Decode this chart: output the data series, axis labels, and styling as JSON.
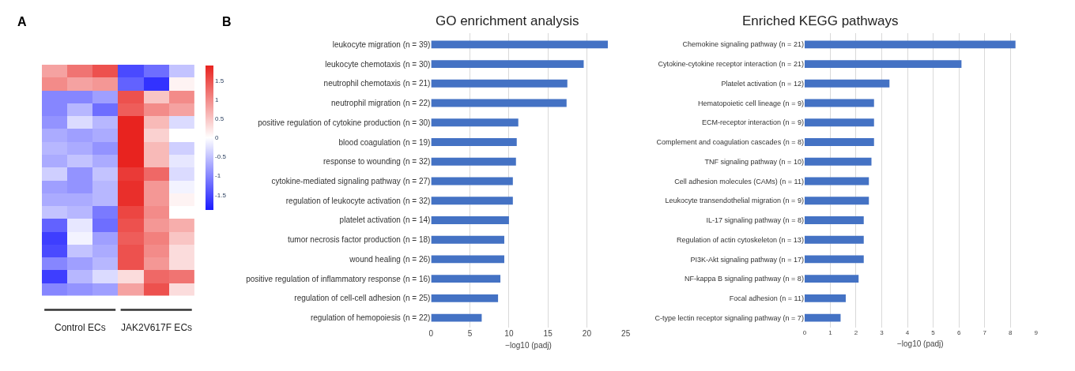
{
  "chart_data": [
    {
      "type": "heatmap",
      "annotations": [
        "A",
        "Control ECs",
        "JAK2V617F ECs"
      ],
      "categories": [
        null,
        null,
        null,
        null,
        null,
        null
      ],
      "y_categories": [
        null,
        null,
        null,
        null,
        null,
        null,
        null,
        null,
        null,
        null,
        null,
        null,
        null,
        null,
        null,
        null,
        null,
        null
      ],
      "clim": [
        -1.9,
        1.9
      ],
      "cticks": [
        -1.5,
        -1,
        -0.5,
        0,
        0.5,
        1,
        1.5
      ],
      "cells": [
        [
          0.8,
          1.2,
          1.5,
          -1.5,
          -1.2,
          -0.5
        ],
        [
          1.0,
          0.8,
          0.9,
          -1.3,
          -1.7,
          0.1
        ],
        [
          -1.0,
          -1.0,
          -0.8,
          1.5,
          0.5,
          1.0
        ],
        [
          -1.0,
          -0.6,
          -1.2,
          1.4,
          1.0,
          0.8
        ],
        [
          -0.9,
          -0.3,
          -0.6,
          1.9,
          0.6,
          -0.3
        ],
        [
          -0.7,
          -0.8,
          -0.7,
          1.9,
          0.4,
          0.0
        ],
        [
          -0.6,
          -0.7,
          -0.9,
          1.9,
          0.6,
          -0.4
        ],
        [
          -0.7,
          -0.5,
          -0.7,
          1.9,
          0.6,
          -0.2
        ],
        [
          -0.4,
          -0.9,
          -0.5,
          1.7,
          1.3,
          -0.3
        ],
        [
          -0.8,
          -0.9,
          -0.6,
          1.8,
          0.9,
          -0.1
        ],
        [
          -0.7,
          -0.7,
          -0.6,
          1.8,
          0.9,
          0.1
        ],
        [
          -0.5,
          -0.6,
          -1.1,
          1.6,
          1.0,
          0.0
        ],
        [
          -1.3,
          -0.2,
          -1.2,
          1.5,
          0.9,
          0.7
        ],
        [
          -1.6,
          -0.1,
          -0.8,
          1.4,
          1.1,
          0.5
        ],
        [
          -1.5,
          -0.5,
          -0.7,
          1.5,
          1.0,
          0.3
        ],
        [
          -1.0,
          -0.8,
          -0.6,
          1.5,
          0.9,
          0.3
        ],
        [
          -1.6,
          -0.6,
          -0.3,
          0.3,
          1.3,
          1.2
        ],
        [
          -1.0,
          -0.9,
          -0.8,
          0.8,
          1.5,
          0.3
        ]
      ]
    },
    {
      "type": "bar",
      "orientation": "horizontal",
      "title": "GO enrichment analysis",
      "xlabel": "−log10 (padj)",
      "annotations": [
        "B"
      ],
      "color": "#4472c4",
      "grid": "x",
      "xlim": [
        0,
        25
      ],
      "xticks": [
        0,
        5,
        10,
        15,
        20,
        25
      ],
      "categories": [
        "leukocyte migration (n = 39)",
        "leukocyte chemotaxis (n = 30)",
        "neutrophil chemotaxis (n = 21)",
        "neutrophil migration (n = 22)",
        "positive regulation of cytokine production (n = 30)",
        "blood coagulation (n = 19)",
        "response to wounding (n = 32)",
        "cytokine-mediated signaling pathway (n = 27)",
        "regulation of leukocyte activation (n = 32)",
        "platelet activation (n = 14)",
        "tumor necrosis factor production (n = 18)",
        "wound healing (n = 26)",
        "positive regulation of inflammatory response (n = 16)",
        "regulation of cell-cell adhesion (n = 25)",
        "regulation of hemopoiesis (n = 22)"
      ],
      "values": [
        22.7,
        19.6,
        17.5,
        17.4,
        11.2,
        11.0,
        10.9,
        10.5,
        10.5,
        10.0,
        9.4,
        9.4,
        8.9,
        8.6,
        6.5
      ]
    },
    {
      "type": "bar",
      "orientation": "horizontal",
      "title": "Enriched KEGG pathways",
      "xlabel": "−log10 (padj)",
      "color": "#4472c4",
      "grid": "x",
      "xlim": [
        0,
        9
      ],
      "xticks": [
        0,
        1,
        2,
        3,
        4,
        5,
        6,
        7,
        8,
        9
      ],
      "categories": [
        "Chemokine signaling pathway (n = 21)",
        "Cytokine-cytokine receptor interaction (n = 21)",
        "Platelet activation (n = 12)",
        "Hematopoietic cell lineage (n = 9)",
        "ECM-receptor interaction (n = 9)",
        "Complement and coagulation cascades (n = 8)",
        "TNF signaling pathway (n = 10)",
        "Cell adhesion molecules (CAMs) (n = 11)",
        "Leukocyte transendothelial migration (n = 9)",
        "IL-17 signaling pathway (n = 8)",
        "Regulation of actin cytoskeleton (n = 13)",
        "PI3K-Akt signaling pathway (n = 17)",
        "NF-kappa B signaling pathway (n = 8)",
        "Focal adhesion (n = 11)",
        "C-type lectin receptor signaling pathway (n = 7)"
      ],
      "values": [
        8.2,
        6.1,
        3.3,
        2.7,
        2.7,
        2.7,
        2.6,
        2.5,
        2.5,
        2.3,
        2.3,
        2.3,
        2.1,
        1.6,
        1.4
      ]
    }
  ]
}
